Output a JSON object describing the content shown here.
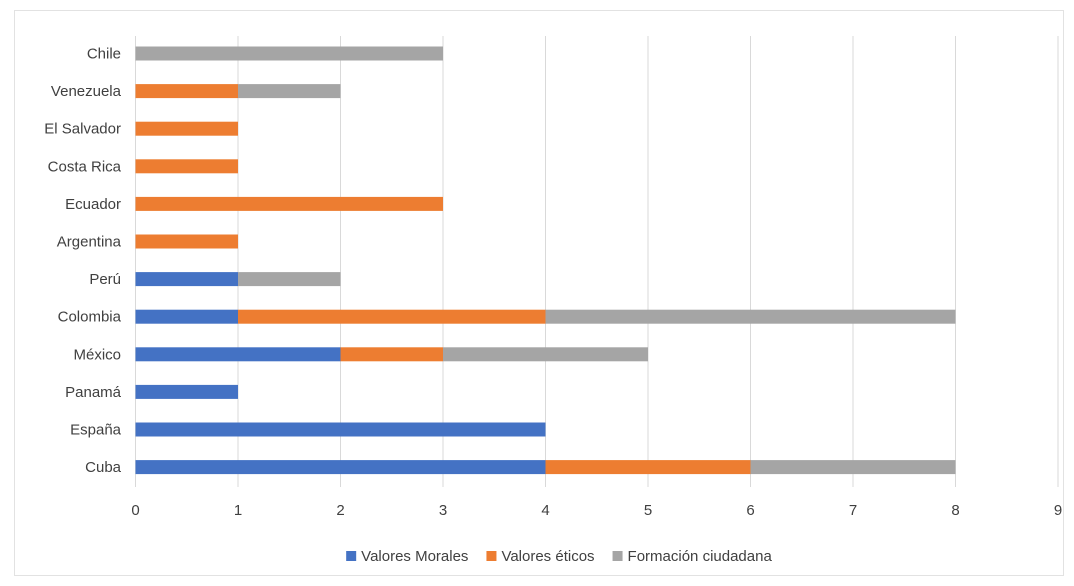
{
  "chart_data": {
    "type": "bar",
    "orientation": "horizontal",
    "stacked": true,
    "categories": [
      "Cuba",
      "España",
      "Panamá",
      "México",
      "Colombia",
      "Perú",
      "Argentina",
      "Ecuador",
      "Costa Rica",
      "El Salvador",
      "Venezuela",
      "Chile"
    ],
    "series": [
      {
        "name": "Valores Morales",
        "color": "#4472c4",
        "values": [
          4,
          4,
          1,
          2,
          1,
          1,
          0,
          0,
          0,
          0,
          0,
          0
        ]
      },
      {
        "name": "Valores éticos",
        "color": "#ed7d31",
        "values": [
          2,
          0,
          0,
          1,
          3,
          0,
          1,
          3,
          1,
          1,
          1,
          0
        ]
      },
      {
        "name": "Formación ciudadana",
        "color": "#a5a5a5",
        "values": [
          2,
          0,
          0,
          2,
          4,
          1,
          0,
          0,
          0,
          0,
          1,
          3
        ]
      }
    ],
    "xlim": [
      0,
      9
    ],
    "xticks": [
      "0",
      "1",
      "2",
      "3",
      "4",
      "5",
      "6",
      "7",
      "8",
      "9"
    ],
    "grid": "vertical",
    "legend": "bottom",
    "title": "",
    "xlabel": "",
    "ylabel": ""
  }
}
